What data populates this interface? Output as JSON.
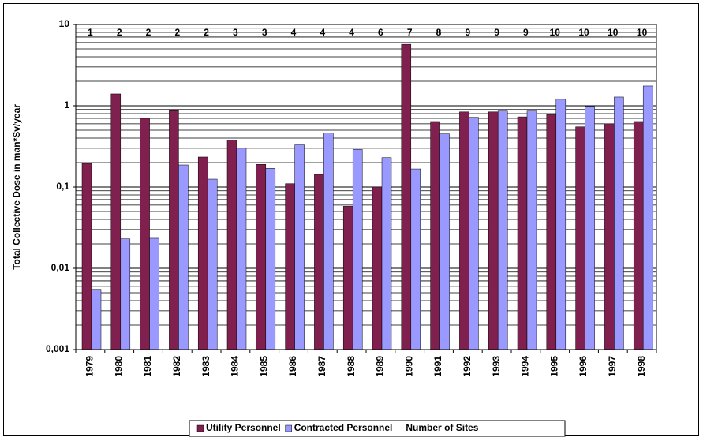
{
  "chart_data": {
    "type": "bar",
    "y_label": "Total Collective Dose in man*Sv/year",
    "categories": [
      "1979",
      "1980",
      "1981",
      "1982",
      "1983",
      "1984",
      "1985",
      "1986",
      "1987",
      "1988",
      "1989",
      "1990",
      "1991",
      "1992",
      "1993",
      "1994",
      "1995",
      "1996",
      "1997",
      "1998"
    ],
    "series": [
      {
        "name": "Utility Personnel",
        "color": "#80204f",
        "values": [
          0.195,
          1.4,
          0.7,
          0.87,
          0.234,
          0.38,
          0.19,
          0.11,
          0.143,
          0.058,
          0.1,
          5.7,
          0.64,
          0.84,
          0.84,
          0.73,
          0.78,
          0.55,
          0.6,
          0.64
        ]
      },
      {
        "name": "Contracted Personnel",
        "color": "#9999ff",
        "values": [
          0.0055,
          0.023,
          0.0234,
          0.187,
          0.125,
          0.3,
          0.17,
          0.33,
          0.46,
          0.29,
          0.23,
          0.167,
          0.45,
          0.72,
          0.86,
          0.86,
          1.2,
          0.98,
          1.28,
          1.75
        ]
      }
    ],
    "sites": {
      "name": "Number of Sites",
      "values": [
        1,
        2,
        2,
        2,
        2,
        3,
        3,
        4,
        4,
        4,
        6,
        7,
        8,
        9,
        9,
        9,
        10,
        10,
        10,
        10
      ]
    },
    "log_scale": true,
    "grid": true,
    "ylim": [
      0.001,
      10
    ],
    "yticks": [
      {
        "value": 0.001,
        "label": "0,001"
      },
      {
        "value": 0.01,
        "label": "0,01"
      },
      {
        "value": 0.1,
        "label": "0,1"
      },
      1,
      10
    ],
    "legend": "bottom"
  }
}
